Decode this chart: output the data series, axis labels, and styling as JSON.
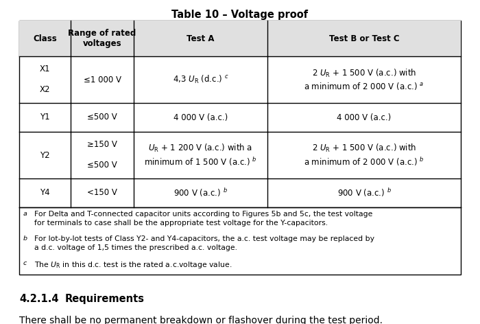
{
  "title": "Table 10 – Voltage proof",
  "background_color": "#ffffff",
  "border_color": "#000000",
  "header_bg": "#e0e0e0",
  "col_headers": [
    "Class",
    "Range of rated\nvoltages",
    "Test A",
    "Test B or Test C"
  ],
  "rows": [
    {
      "class": "X1\n\nX2",
      "range": "≤1 000 V",
      "testA": "4,3 $U_\\mathrm{R}$ (d.c.) $^c$",
      "testBC": "2 $U_\\mathrm{R}$ + 1 500 V (a.c.) with\na minimum of 2 000 V (a.c.) $^a$"
    },
    {
      "class": "Y1",
      "range": "≤500 V",
      "testA": "4 000 V (a.c.)",
      "testBC": "4 000 V (a.c.)"
    },
    {
      "class": "Y2",
      "range": "≥150 V\n\n≤500 V",
      "testA": "$U_\\mathrm{R}$ + 1 200 V (a.c.) with a\nminimum of 1 500 V (a.c.) $^b$",
      "testBC": "2 $U_\\mathrm{R}$ + 1 500 V (a.c.) with\na minimum of 2 000 V (a.c.) $^b$"
    },
    {
      "class": "Y4",
      "range": "<150 V",
      "testA": "900 V (a.c.) $^b$",
      "testBC": "900 V (a.c.) $^b$"
    }
  ],
  "footnote_a_label": "a",
  "footnote_a_line1": "For Delta and T-connected capacitor units according to Figures 5b and 5c, the test voltage",
  "footnote_a_line2": "for terminals to case shall be the appropriate test voltage for the Y-capacitors.",
  "footnote_b_label": "b",
  "footnote_b_line1": "For lot-by-lot tests of Class Y2- and Y4-capacitors, the a.c. test voltage may be replaced by",
  "footnote_b_line2": "a d.c. voltage of 1,5 times the prescribed a.c. voltage.",
  "footnote_c_label": "c",
  "footnote_c_line1": "The $U_\\mathrm{R}$ in this d.c. test is the rated a.c.voltage value.",
  "section_number": "4.2.1.4",
  "section_heading": "Requirements",
  "section_body": "There shall be no permanent breakdown or flashover during the test period."
}
